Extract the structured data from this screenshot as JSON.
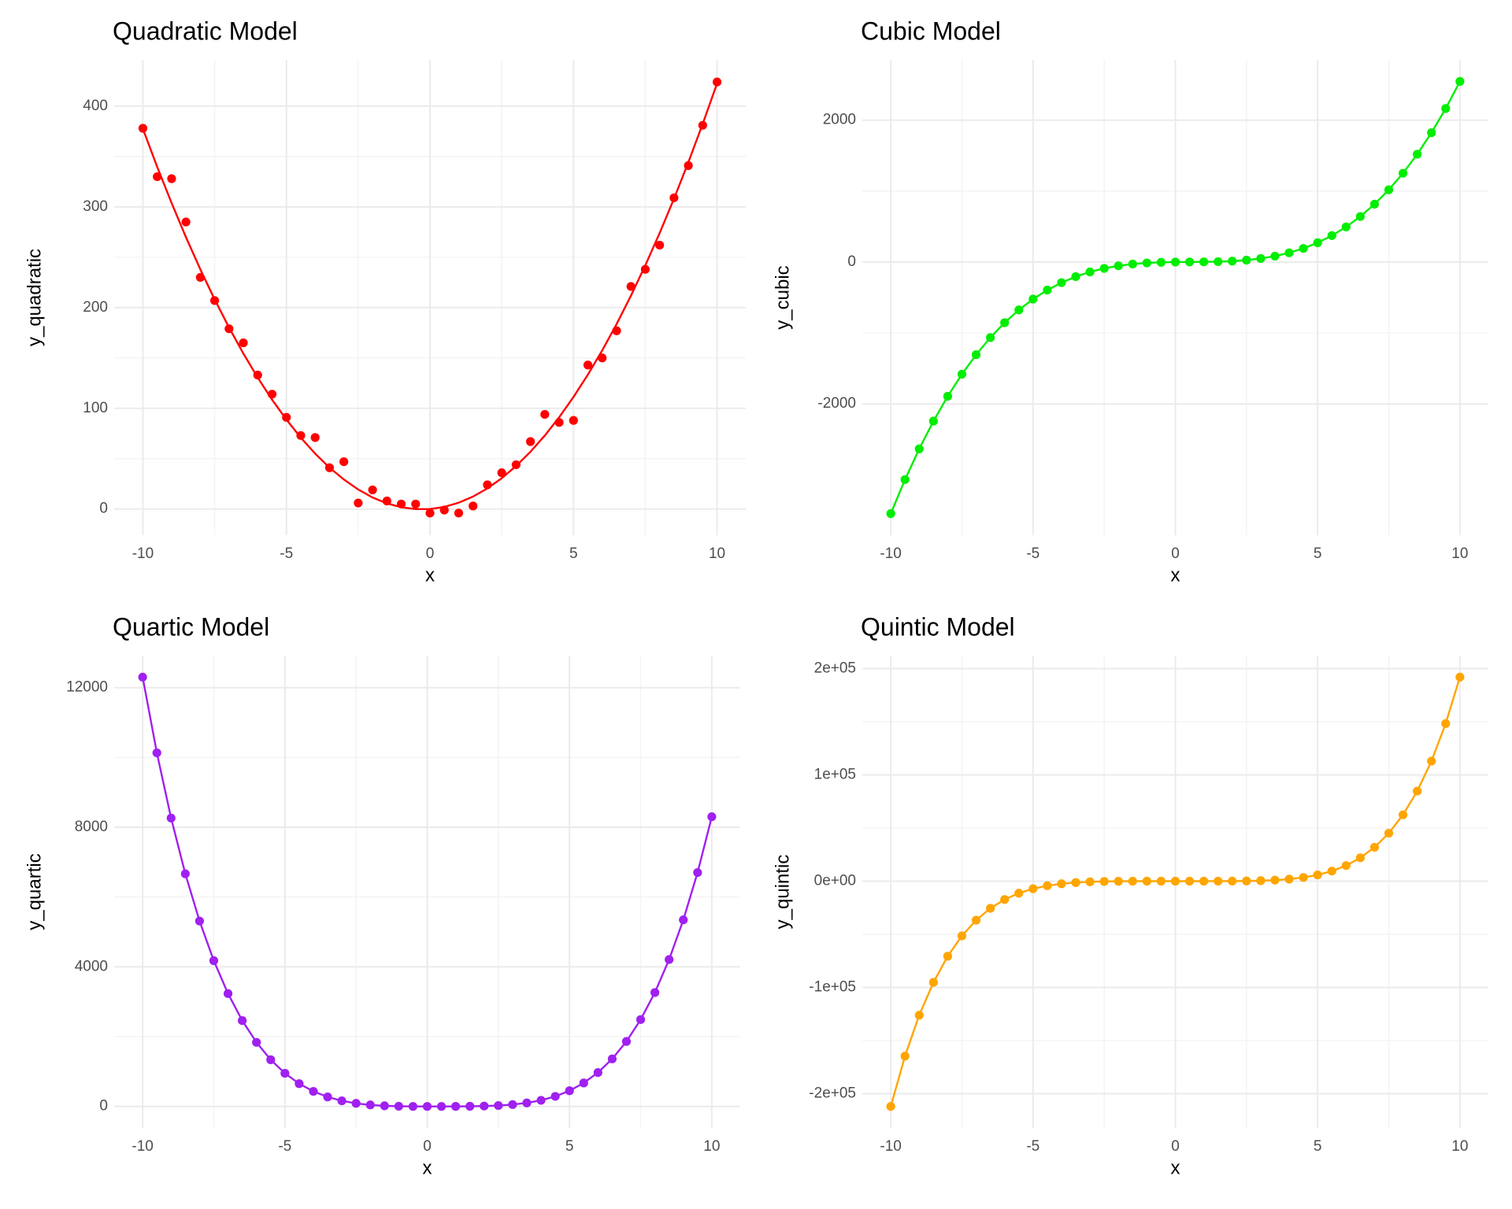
{
  "chart_data": [
    {
      "type": "scatter",
      "title": "Quadratic Model",
      "x_label": "x",
      "y_label": "y_quadratic",
      "color": "#ff0000",
      "x": [
        -10,
        -9.5,
        -9,
        -8.5,
        -8,
        -7.5,
        -7,
        -6.5,
        -6,
        -5.5,
        -5,
        -4.5,
        -4,
        -3.5,
        -3,
        -2.5,
        -2,
        -1.5,
        -1,
        -0.5,
        0,
        0.5,
        1,
        1.5,
        2,
        2.5,
        3,
        3.5,
        4,
        4.5,
        5,
        5.5,
        6,
        6.5,
        7,
        7.5,
        8,
        8.5,
        9,
        9.5,
        10
      ],
      "values": [
        378,
        330,
        328,
        285,
        230,
        207,
        179,
        165,
        133,
        114,
        91,
        73,
        71,
        41,
        47,
        6,
        19,
        8,
        5,
        5,
        -4,
        -1,
        -4,
        3,
        24,
        36,
        44,
        67,
        94,
        86,
        88,
        143,
        150,
        177,
        221,
        238,
        262,
        309,
        341,
        381,
        424
      ],
      "fit": [
        377.5,
        339.6,
        303.8,
        269.9,
        238,
        208.1,
        180.3,
        154.4,
        130.5,
        108.6,
        88.8,
        70.9,
        55,
        41.1,
        29.3,
        19.4,
        11.5,
        5.6,
        1.8,
        -0.1,
        0,
        2.1,
        6.3,
        12.4,
        20.5,
        30.6,
        42.8,
        56.9,
        73,
        91.1,
        111.3,
        133.4,
        157.5,
        183.6,
        211.8,
        241.9,
        274,
        308.1,
        344.3,
        382.4,
        422.5
      ],
      "xlim": [
        -11,
        11
      ],
      "xticks": [
        -10,
        -5,
        0,
        5,
        10
      ],
      "ylim": [
        -26,
        446
      ],
      "yticks": [
        0,
        100,
        200,
        300,
        400
      ],
      "grid": true,
      "minor_grid": true
    },
    {
      "type": "line",
      "title": "Cubic Model",
      "x_label": "x",
      "y_label": "y_cubic",
      "color": "#00ee00",
      "x": [
        -10,
        -9.5,
        -9,
        -8.5,
        -8,
        -7.5,
        -7,
        -6.5,
        -6,
        -5.5,
        -5,
        -4.5,
        -4,
        -3.5,
        -3,
        -2.5,
        -2,
        -1.5,
        -1,
        -0.5,
        0,
        0.5,
        1,
        1.5,
        2,
        2.5,
        3,
        3.5,
        4,
        4.5,
        5,
        5.5,
        6,
        6.5,
        7,
        7.5,
        8,
        8.5,
        9,
        9.5,
        10
      ],
      "values": [
        -3545,
        -3066.1,
        -2632.5,
        -2241.9,
        -1892,
        -1580.6,
        -1305.5,
        -1064.4,
        -855,
        -675.1,
        -522.5,
        -394.9,
        -290,
        -205.6,
        -139.5,
        -89.4,
        -53,
        -28.1,
        -12.5,
        -3.9,
        0,
        1.4,
        2.5,
        5.6,
        13,
        26.9,
        49.5,
        83.1,
        130,
        192.4,
        272.5,
        372.6,
        495,
        641.9,
        815.5,
        1018.1,
        1252,
        1519.4,
        1822.5,
        2163.6,
        2545
      ],
      "xlim": [
        -11,
        11
      ],
      "xticks": [
        -10,
        -5,
        0,
        5,
        10
      ],
      "ylim": [
        -3850,
        2850
      ],
      "yticks": [
        -2000,
        0,
        2000
      ],
      "grid": true,
      "minor_grid": true
    },
    {
      "type": "line",
      "title": "Quartic Model",
      "x_label": "x",
      "y_label": "y_quartic",
      "color": "#a020f0",
      "x": [
        -10,
        -9.5,
        -9,
        -8.5,
        -8,
        -7.5,
        -7,
        -6.5,
        -6,
        -5.5,
        -5,
        -4.5,
        -4,
        -3.5,
        -3,
        -2.5,
        -2,
        -1.5,
        -1,
        -0.5,
        0,
        0.5,
        1,
        1.5,
        2,
        2.5,
        3,
        3.5,
        4,
        4.5,
        5,
        5.5,
        6,
        6.5,
        7,
        7.5,
        8,
        8.5,
        9,
        9.5,
        10
      ],
      "values": [
        12300,
        10130.6,
        8262,
        6665.1,
        5312,
        4176.6,
        3234,
        2461.1,
        1836,
        1338.6,
        950,
        653.1,
        432,
        272.6,
        162,
        89.1,
        44,
        18.6,
        6,
        1.1,
        0,
        0.6,
        2,
        5.1,
        12,
        26.6,
        54,
        101.1,
        176,
        288.6,
        450,
        673.1,
        972,
        1362.6,
        1862,
        2489.1,
        3264,
        4208.6,
        5346,
        6701.1,
        8300
      ],
      "xlim": [
        -11,
        11
      ],
      "xticks": [
        -10,
        -5,
        0,
        5,
        10
      ],
      "ylim": [
        -615,
        12915
      ],
      "yticks": [
        0,
        4000,
        8000,
        12000
      ],
      "grid": true,
      "minor_grid": true
    },
    {
      "type": "line",
      "title": "Quintic Model",
      "x_label": "x",
      "y_label": "y_quintic",
      "color": "#ffa500",
      "x": [
        -10,
        -9.5,
        -9,
        -8.5,
        -8,
        -7.5,
        -7,
        -6.5,
        -6,
        -5.5,
        -5,
        -4.5,
        -4,
        -3.5,
        -3,
        -2.5,
        -2,
        -1.5,
        -1,
        -0.5,
        0,
        0.5,
        1,
        1.5,
        2,
        2.5,
        3,
        3.5,
        4,
        4.5,
        5,
        5.5,
        6,
        6.5,
        7,
        7.5,
        8,
        8.5,
        9,
        9.5,
        10
      ],
      "values": [
        -212000,
        -164616,
        -126117,
        -95189,
        -70656,
        -51469,
        -36701,
        -25540,
        -17280,
        -11314,
        -7125,
        -4283,
        -2432,
        -1286,
        -621,
        -266,
        -96,
        -27,
        -5,
        -0.4,
        0,
        0.3,
        3,
        17,
        64,
        187,
        459,
        986,
        1920,
        3463,
        5875,
        9483,
        14688,
        21970,
        31899,
        45141,
        62464,
        84749,
        113001,
        148326,
        192000
      ],
      "xlim": [
        -11,
        11
      ],
      "xticks": [
        -10,
        -5,
        0,
        5,
        10
      ],
      "ylim": [
        -232200,
        212200
      ],
      "yticks": [
        {
          "value": -200000,
          "label": "-2e+05"
        },
        {
          "value": -100000,
          "label": "-1e+05"
        },
        {
          "value": 0,
          "label": "0e+00"
        },
        {
          "value": 100000,
          "label": "1e+05"
        },
        {
          "value": 200000,
          "label": "2e+05"
        }
      ],
      "grid": true,
      "minor_grid": true
    }
  ]
}
